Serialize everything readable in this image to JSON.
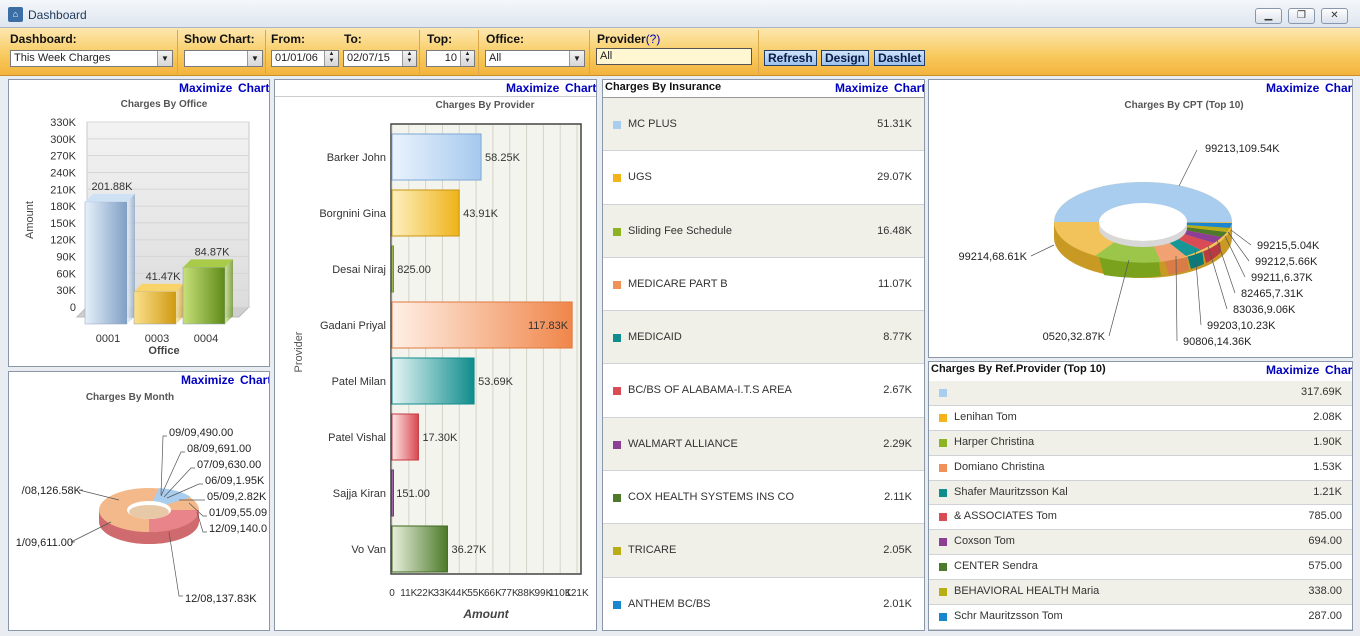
{
  "window": {
    "title": "Dashboard",
    "icon": "app-icon",
    "minimize": "▁",
    "restore": "❐",
    "close": "✕"
  },
  "toolbar": {
    "dashboard": {
      "label": "Dashboard:",
      "value": "This Week Charges"
    },
    "show_chart": {
      "label": "Show Chart:",
      "value": ""
    },
    "from": {
      "label": "From:",
      "value": "01/01/06"
    },
    "to": {
      "label": "To:",
      "value": "02/07/15"
    },
    "top": {
      "label": "Top:",
      "value": "10"
    },
    "office": {
      "label": "Office:",
      "value": "All"
    },
    "provider": {
      "label": "Provider",
      "help": "(?)",
      "value": "All"
    },
    "buttons": {
      "refresh": "Refresh",
      "design": "Design",
      "dashlet": "Dashlet"
    }
  },
  "links": {
    "maximize": "Maximize",
    "chart": "Chart"
  },
  "colors": {
    "accent": "#0000c0",
    "toolbar": "#f8c95c"
  },
  "charts": {
    "office": {
      "title": "Charges By Office",
      "xlabel": "Office",
      "ylabel": "Amount",
      "ticks": [
        "330K",
        "300K",
        "270K",
        "240K",
        "210K",
        "180K",
        "150K",
        "120K",
        "90K",
        "60K",
        "30K",
        "0"
      ],
      "bars": [
        {
          "category": "0001",
          "label": "201.88K"
        },
        {
          "category": "0003",
          "label": "41.47K"
        },
        {
          "category": "0004",
          "label": "84.87K"
        }
      ]
    },
    "month": {
      "title": "Charges By Month",
      "labels": [
        "09/09,490.00",
        "08/09,691.00",
        "07/09,630.00",
        "06/09,1.95K",
        "05/09,2.82K",
        "01/09,55.09",
        "12/09,140.0",
        "/08,126.58K",
        "1/09,611.00",
        "12/08,137.83K"
      ]
    },
    "provider": {
      "title": "Charges By Provider",
      "xlabel": "Amount",
      "ylabel": "Provider",
      "x_ticks": [
        "0",
        "11K",
        "22K",
        "33K",
        "44K",
        "55K",
        "66K",
        "77K",
        "88K",
        "99K",
        "110K",
        "121K"
      ],
      "bars": [
        {
          "name": "Barker John",
          "label": "58.25K"
        },
        {
          "name": "Borgnini Gina",
          "label": "43.91K"
        },
        {
          "name": "Desai Niraj",
          "label": "825.00"
        },
        {
          "name": "Gadani Priyal",
          "label": "117.83K"
        },
        {
          "name": "Patel Milan",
          "label": "53.69K"
        },
        {
          "name": "Patel Vishal",
          "label": "17.30K"
        },
        {
          "name": "Sajja Kiran",
          "label": "151.00"
        },
        {
          "name": "Vo Van",
          "label": "36.27K"
        }
      ]
    },
    "insurance": {
      "title": "Charges By Insurance",
      "rows": [
        {
          "name": "MC PLUS",
          "value": "51.31K",
          "color": "#a9cdef"
        },
        {
          "name": "UGS",
          "value": "29.07K",
          "color": "#f2b418"
        },
        {
          "name": "Sliding Fee Schedule",
          "value": "16.48K",
          "color": "#8bb323"
        },
        {
          "name": "MEDICARE PART B",
          "value": "11.07K",
          "color": "#f0915a"
        },
        {
          "name": "MEDICAID",
          "value": "8.77K",
          "color": "#0f8c8c"
        },
        {
          "name": "BC/BS OF ALABAMA-I.T.S AREA",
          "value": "2.67K",
          "color": "#d94c55"
        },
        {
          "name": "WALMART ALLIANCE",
          "value": "2.29K",
          "color": "#8c3f95"
        },
        {
          "name": "COX HEALTH SYSTEMS INS CO",
          "value": "2.11K",
          "color": "#4d7a2a"
        },
        {
          "name": "TRICARE",
          "value": "2.05K",
          "color": "#b9ad16"
        },
        {
          "name": "ANTHEM BC/BS",
          "value": "2.01K",
          "color": "#1a86cf"
        }
      ]
    },
    "cpt": {
      "title": "Charges By CPT  (Top 10)",
      "labels": [
        "99213,109.54K",
        "99214,68.61K",
        "99215,5.04K",
        "99212,5.66K",
        "99211,6.37K",
        "82465,7.31K",
        "83036,9.06K",
        "99203,10.23K",
        "90806,14.36K",
        "0520,32.87K"
      ]
    },
    "refprovider": {
      "title": "Charges By Ref.Provider (Top 10)",
      "rows": [
        {
          "name": "",
          "value": "317.69K",
          "color": "#a9cdef"
        },
        {
          "name": "Lenihan Tom",
          "value": "2.08K",
          "color": "#f2b418"
        },
        {
          "name": "Harper Christina",
          "value": "1.90K",
          "color": "#8bb323"
        },
        {
          "name": "Domiano Christina",
          "value": "1.53K",
          "color": "#f0915a"
        },
        {
          "name": "Shafer Mauritzsson Kal",
          "value": "1.21K",
          "color": "#0f8c8c"
        },
        {
          "name": "& ASSOCIATES Tom",
          "value": "785.00",
          "color": "#d94c55"
        },
        {
          "name": "Coxson Tom",
          "value": "694.00",
          "color": "#8c3f95"
        },
        {
          "name": "CENTER Sendra",
          "value": "575.00",
          "color": "#4d7a2a"
        },
        {
          "name": "BEHAVIORAL HEALTH Maria",
          "value": "338.00",
          "color": "#b9ad16"
        },
        {
          "name": "Schr Mauritzsson Tom",
          "value": "287.00",
          "color": "#1a86cf"
        }
      ]
    }
  },
  "chart_data": [
    {
      "type": "bar",
      "title": "Charges By Office",
      "xlabel": "Office",
      "ylabel": "Amount",
      "categories": [
        "0001",
        "0003",
        "0004"
      ],
      "values": [
        201880,
        41470,
        84870
      ],
      "ylim": [
        0,
        330000
      ]
    },
    {
      "type": "bar",
      "title": "Charges By Provider",
      "xlabel": "Amount",
      "ylabel": "Provider",
      "categories": [
        "Barker John",
        "Borgnini Gina",
        "Desai Niraj",
        "Gadani Priyal",
        "Patel Milan",
        "Patel Vishal",
        "Sajja Kiran",
        "Vo Van"
      ],
      "values": [
        58250,
        43910,
        825,
        117830,
        53690,
        17300,
        151,
        36270
      ],
      "xlim": [
        0,
        121000
      ]
    },
    {
      "type": "pie",
      "title": "Charges By CPT  (Top 10)",
      "categories": [
        "99213",
        "99214",
        "0520",
        "90806",
        "99203",
        "83036",
        "82465",
        "99211",
        "99212",
        "99215"
      ],
      "values": [
        109540,
        68610,
        32870,
        14360,
        10230,
        9060,
        7310,
        6370,
        5660,
        5040
      ]
    },
    {
      "type": "pie",
      "title": "Charges By Month",
      "categories": [
        "/08",
        "12/08",
        "1/09",
        "12/09",
        "01/09",
        "05/09",
        "06/09",
        "07/09",
        "08/09",
        "09/09"
      ],
      "values": [
        126580,
        137830,
        611,
        140,
        55.09,
        2820,
        1950,
        630,
        691,
        490
      ]
    },
    {
      "type": "table",
      "title": "Charges By Insurance",
      "categories": [
        "MC PLUS",
        "UGS",
        "Sliding Fee Schedule",
        "MEDICARE PART B",
        "MEDICAID",
        "BC/BS OF ALABAMA-I.T.S AREA",
        "WALMART ALLIANCE",
        "COX HEALTH SYSTEMS INS CO",
        "TRICARE",
        "ANTHEM BC/BS"
      ],
      "values": [
        51310,
        29070,
        16480,
        11070,
        8770,
        2670,
        2290,
        2110,
        2050,
        2010
      ]
    },
    {
      "type": "table",
      "title": "Charges By Ref.Provider (Top 10)",
      "categories": [
        "",
        "Lenihan Tom",
        "Harper Christina",
        "Domiano Christina",
        "Shafer Mauritzsson Kal",
        "& ASSOCIATES Tom",
        "Coxson Tom",
        "CENTER Sendra",
        "BEHAVIORAL HEALTH Maria",
        "Schr Mauritzsson Tom"
      ],
      "values": [
        317690,
        2080,
        1900,
        1530,
        1210,
        785,
        694,
        575,
        338,
        287
      ]
    }
  ]
}
